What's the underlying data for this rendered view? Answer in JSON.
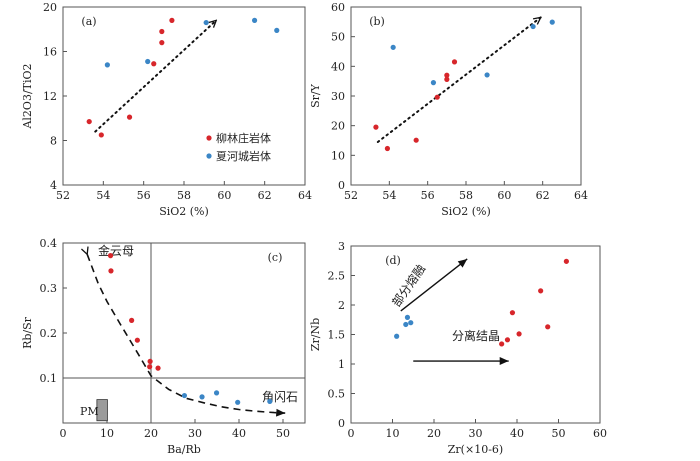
{
  "colors": {
    "liu": "#d7262b",
    "xia": "#3b86c6",
    "frame": "#555555",
    "pm_box": "#9b9b9b"
  },
  "legend": {
    "liu": "柳林庄岩体",
    "xia": "夏河城岩体"
  },
  "chart_data": [
    {
      "type": "scatter",
      "panel_label": "(a)",
      "xlabel": "SiO2 (%)",
      "ylabel": "Al2O3/TiO2",
      "xlim": [
        52,
        64
      ],
      "ylim": [
        4,
        20
      ],
      "xticks": [
        52,
        54,
        56,
        58,
        60,
        62,
        64
      ],
      "yticks": [
        4,
        8,
        12,
        16,
        20
      ],
      "legend_position": "lower-right",
      "series": [
        {
          "name": "柳林庄岩体",
          "x": [
            53.3,
            53.9,
            55.3,
            56.5,
            56.9,
            56.9,
            57.4
          ],
          "y": [
            9.7,
            8.5,
            10.1,
            14.9,
            17.8,
            16.8,
            18.8
          ]
        },
        {
          "name": "夏河城岩体",
          "x": [
            54.2,
            56.2,
            59.1,
            61.5,
            62.6
          ],
          "y": [
            14.8,
            15.1,
            18.6,
            18.8,
            17.9
          ]
        }
      ],
      "trend_arrow": {
        "from": [
          53.6,
          8.8
        ],
        "to": [
          59.6,
          18.8
        ]
      }
    },
    {
      "type": "scatter",
      "panel_label": "(b)",
      "xlabel": "SiO2 (%)",
      "ylabel": "Sr/Y",
      "xlim": [
        52,
        64
      ],
      "ylim": [
        0,
        60
      ],
      "xticks": [
        52,
        54,
        56,
        58,
        60,
        62,
        64
      ],
      "yticks": [
        0,
        10,
        20,
        30,
        40,
        50,
        60
      ],
      "series": [
        {
          "name": "柳林庄岩体",
          "x": [
            53.3,
            53.9,
            55.4,
            56.5,
            57.0,
            57.0,
            57.4
          ],
          "y": [
            19.5,
            12.3,
            15.1,
            29.6,
            35.6,
            37.0,
            41.5
          ]
        },
        {
          "name": "夏河城岩体",
          "x": [
            54.2,
            56.3,
            59.1,
            61.5,
            62.5
          ],
          "y": [
            46.4,
            34.5,
            37.1,
            53.4,
            54.9
          ]
        }
      ],
      "trend_arrow": {
        "from": [
          53.4,
          14.5
        ],
        "to": [
          61.9,
          56.5
        ]
      }
    },
    {
      "type": "scatter",
      "panel_label": "(c)",
      "xlabel": "Ba/Rb",
      "ylabel": "Rb/Sr",
      "xlim": [
        0,
        55
      ],
      "ylim": [
        0,
        0.4
      ],
      "xticks": [
        0,
        10,
        20,
        30,
        40,
        50
      ],
      "yticks": [
        0.1,
        0.2,
        0.3,
        0.4
      ],
      "yticklabels": [
        "0.1",
        "0.2",
        "0.3",
        "0.4"
      ],
      "reference_lines": {
        "x": 20,
        "y": 0.1
      },
      "annotations": [
        "金云母",
        "角闪石",
        "PM"
      ],
      "pm_box": {
        "x": [
          7.7,
          10.1
        ],
        "y": [
          0.005,
          0.052
        ]
      },
      "trend_curve": {
        "x": [
          5.5,
          8,
          10,
          13,
          17,
          20,
          24,
          28,
          32,
          36,
          40,
          44,
          48,
          50.5
        ],
        "y": [
          0.375,
          0.31,
          0.27,
          0.22,
          0.155,
          0.105,
          0.075,
          0.055,
          0.045,
          0.036,
          0.03,
          0.026,
          0.023,
          0.022
        ]
      },
      "series": [
        {
          "name": "柳林庄岩体",
          "x": [
            10.8,
            10.9,
            15.6,
            16.9,
            19.8,
            19.7,
            21.6
          ],
          "y": [
            0.372,
            0.338,
            0.228,
            0.184,
            0.137,
            0.125,
            0.122
          ]
        },
        {
          "name": "夏河城岩体",
          "x": [
            27.6,
            31.6,
            34.9,
            39.7,
            47.0
          ],
          "y": [
            0.061,
            0.058,
            0.067,
            0.046,
            0.048
          ]
        }
      ]
    },
    {
      "type": "scatter",
      "panel_label": "(d)",
      "xlabel": "Zr(×10-6)",
      "ylabel": "Zr/Nb",
      "xlim": [
        0,
        60
      ],
      "ylim": [
        0,
        3
      ],
      "xticks": [
        0,
        10,
        20,
        30,
        40,
        50,
        60
      ],
      "yticks": [
        0,
        0.5,
        1,
        1.5,
        2,
        2.5,
        3
      ],
      "yticklabels": [
        "0",
        "0.5",
        "1",
        "1.5",
        "2",
        "2.5",
        "3"
      ],
      "annotations": [
        "部分熔融",
        "分离结晶"
      ],
      "partial_melting_arrow": {
        "from": [
          12,
          1.9
        ],
        "to": [
          28,
          2.78
        ]
      },
      "fractional_crystallization_arrow": {
        "from": [
          15,
          1.05
        ],
        "to": [
          38,
          1.05
        ]
      },
      "series": [
        {
          "name": "柳林庄岩体",
          "x": [
            36.3,
            37.7,
            38.9,
            40.5,
            45.7,
            47.4,
            51.9
          ],
          "y": [
            1.34,
            1.41,
            1.87,
            1.51,
            2.24,
            1.63,
            2.74
          ]
        },
        {
          "name": "夏河城岩体",
          "x": [
            11.0,
            13.2,
            13.6,
            14.4
          ],
          "y": [
            1.47,
            1.67,
            1.79,
            1.7
          ]
        }
      ]
    }
  ]
}
